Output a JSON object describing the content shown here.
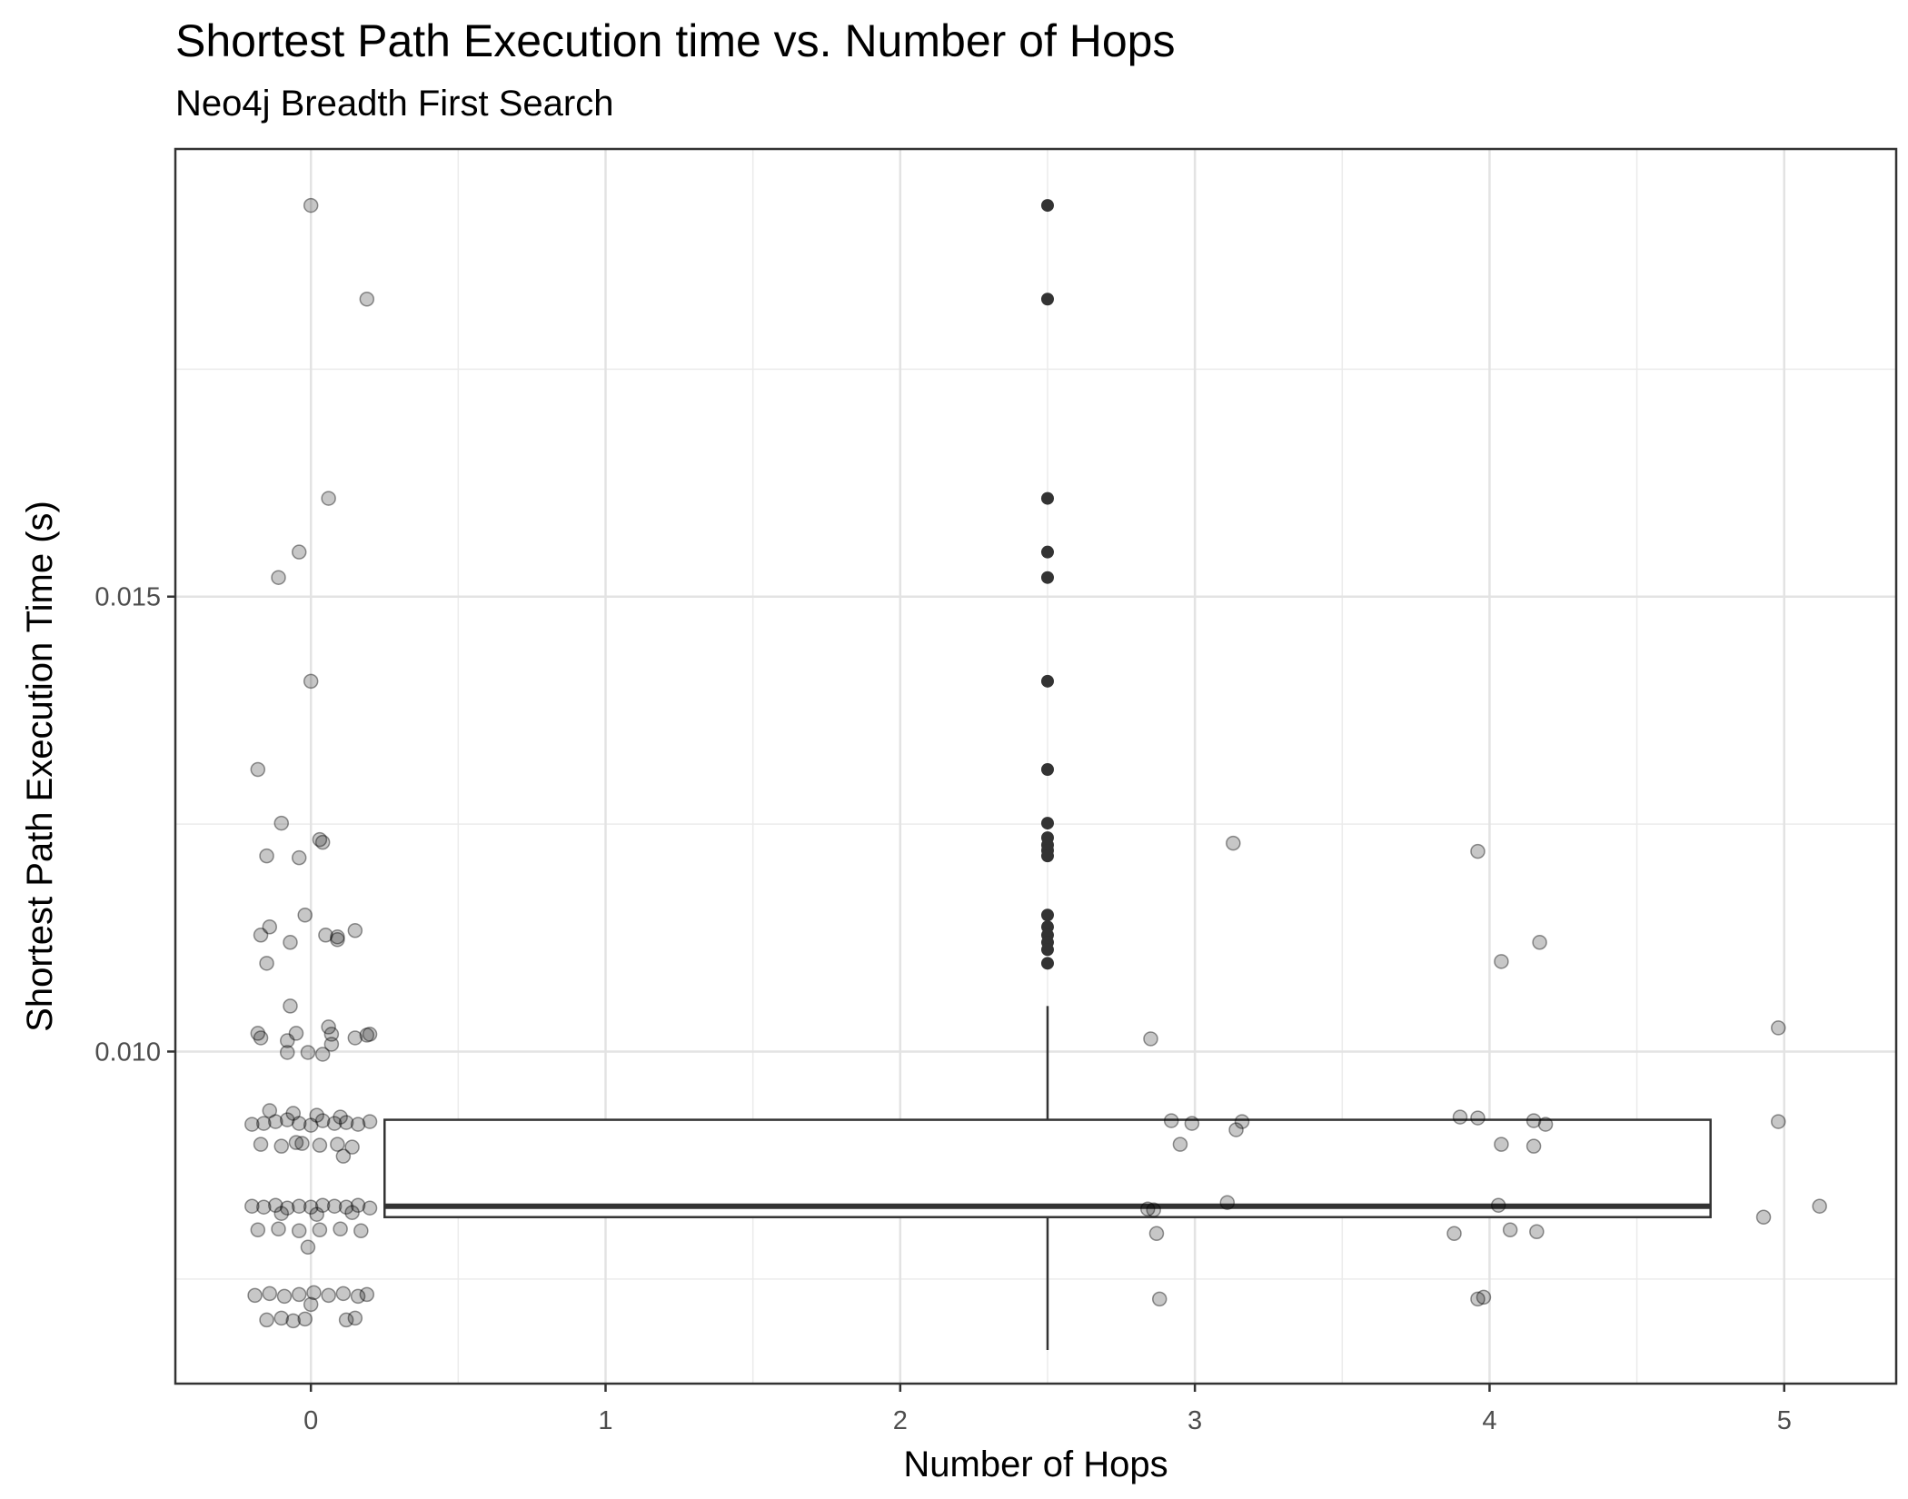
{
  "chart_data": {
    "type": "boxplot-with-jitter",
    "title": "Shortest Path Execution time vs. Number of Hops",
    "subtitle": "Neo4j Breadth First Search",
    "xlabel": "Number of Hops",
    "ylabel": "Shortest Path Execution Time (s)",
    "xlim": [
      -0.46,
      5.38
    ],
    "ylim": [
      0.00635,
      0.01992
    ],
    "x_ticks": [
      0,
      1,
      2,
      3,
      4,
      5
    ],
    "x_tick_labels": [
      "0",
      "1",
      "2",
      "3",
      "4",
      "5"
    ],
    "y_ticks": [
      0.01,
      0.015
    ],
    "y_tick_labels": [
      "0.010",
      "0.015"
    ],
    "grid": true,
    "box": {
      "x_center": 2.5,
      "x_range": [
        0.25,
        4.75
      ],
      "q1": 0.00818,
      "median": 0.0083,
      "q3": 0.00925,
      "whisker_low": 0.00672,
      "whisker_high": 0.0105
    },
    "outliers": [
      0.0193,
      0.01827,
      0.01608,
      0.01549,
      0.01521,
      0.01407,
      0.0131,
      0.01251,
      0.01235,
      0.01227,
      0.01221,
      0.01215,
      0.0115,
      0.01137,
      0.01128,
      0.0112,
      0.01112,
      0.01097
    ],
    "points": [
      {
        "x": 0.0,
        "y": 0.0193
      },
      {
        "x": 0.19,
        "y": 0.01827
      },
      {
        "x": 0.06,
        "y": 0.01608
      },
      {
        "x": -0.04,
        "y": 0.01549
      },
      {
        "x": -0.11,
        "y": 0.01521
      },
      {
        "x": 0.0,
        "y": 0.01407
      },
      {
        "x": -0.18,
        "y": 0.0131
      },
      {
        "x": -0.1,
        "y": 0.01251
      },
      {
        "x": -0.15,
        "y": 0.01215
      },
      {
        "x": -0.04,
        "y": 0.01213
      },
      {
        "x": 0.03,
        "y": 0.01233
      },
      {
        "x": 0.04,
        "y": 0.0123
      },
      {
        "x": -0.02,
        "y": 0.0115
      },
      {
        "x": -0.14,
        "y": 0.01137
      },
      {
        "x": -0.17,
        "y": 0.01128
      },
      {
        "x": -0.07,
        "y": 0.0112
      },
      {
        "x": 0.05,
        "y": 0.01128
      },
      {
        "x": 0.09,
        "y": 0.01126
      },
      {
        "x": 0.15,
        "y": 0.01133
      },
      {
        "x": 0.09,
        "y": 0.01123
      },
      {
        "x": -0.15,
        "y": 0.01097
      },
      {
        "x": -0.07,
        "y": 0.0105
      },
      {
        "x": -0.18,
        "y": 0.0102
      },
      {
        "x": -0.17,
        "y": 0.01015
      },
      {
        "x": -0.05,
        "y": 0.0102
      },
      {
        "x": -0.08,
        "y": 0.01012
      },
      {
        "x": 0.06,
        "y": 0.01027
      },
      {
        "x": 0.07,
        "y": 0.01019
      },
      {
        "x": 0.07,
        "y": 0.01008
      },
      {
        "x": 0.15,
        "y": 0.01015
      },
      {
        "x": 0.19,
        "y": 0.01018
      },
      {
        "x": 0.2,
        "y": 0.01019
      },
      {
        "x": -0.08,
        "y": 0.00999
      },
      {
        "x": -0.01,
        "y": 0.00999
      },
      {
        "x": 0.04,
        "y": 0.00997
      },
      {
        "x": -0.2,
        "y": 0.0092
      },
      {
        "x": -0.16,
        "y": 0.00921
      },
      {
        "x": -0.12,
        "y": 0.00923
      },
      {
        "x": -0.08,
        "y": 0.00925
      },
      {
        "x": -0.04,
        "y": 0.00921
      },
      {
        "x": 0.0,
        "y": 0.00919
      },
      {
        "x": 0.04,
        "y": 0.00924
      },
      {
        "x": 0.08,
        "y": 0.00921
      },
      {
        "x": 0.12,
        "y": 0.00922
      },
      {
        "x": 0.16,
        "y": 0.0092
      },
      {
        "x": 0.2,
        "y": 0.00923
      },
      {
        "x": -0.14,
        "y": 0.00935
      },
      {
        "x": -0.06,
        "y": 0.00932
      },
      {
        "x": 0.02,
        "y": 0.0093
      },
      {
        "x": 0.1,
        "y": 0.00928
      },
      {
        "x": -0.17,
        "y": 0.00898
      },
      {
        "x": -0.1,
        "y": 0.00896
      },
      {
        "x": -0.03,
        "y": 0.00899
      },
      {
        "x": 0.03,
        "y": 0.00897
      },
      {
        "x": 0.09,
        "y": 0.00898
      },
      {
        "x": 0.14,
        "y": 0.00895
      },
      {
        "x": -0.05,
        "y": 0.009
      },
      {
        "x": 0.11,
        "y": 0.00885
      },
      {
        "x": -0.2,
        "y": 0.0083
      },
      {
        "x": -0.16,
        "y": 0.00829
      },
      {
        "x": -0.12,
        "y": 0.00831
      },
      {
        "x": -0.08,
        "y": 0.00828
      },
      {
        "x": -0.04,
        "y": 0.0083
      },
      {
        "x": 0.0,
        "y": 0.00829
      },
      {
        "x": 0.04,
        "y": 0.00831
      },
      {
        "x": 0.08,
        "y": 0.0083
      },
      {
        "x": 0.12,
        "y": 0.00829
      },
      {
        "x": 0.16,
        "y": 0.00831
      },
      {
        "x": 0.2,
        "y": 0.00828
      },
      {
        "x": -0.1,
        "y": 0.00822
      },
      {
        "x": 0.02,
        "y": 0.00821
      },
      {
        "x": 0.14,
        "y": 0.00823
      },
      {
        "x": -0.18,
        "y": 0.00804
      },
      {
        "x": -0.11,
        "y": 0.00805
      },
      {
        "x": -0.04,
        "y": 0.00803
      },
      {
        "x": 0.03,
        "y": 0.00804
      },
      {
        "x": 0.1,
        "y": 0.00805
      },
      {
        "x": 0.17,
        "y": 0.00803
      },
      {
        "x": -0.01,
        "y": 0.00785
      },
      {
        "x": -0.19,
        "y": 0.00732
      },
      {
        "x": -0.14,
        "y": 0.00734
      },
      {
        "x": -0.09,
        "y": 0.00731
      },
      {
        "x": -0.04,
        "y": 0.00733
      },
      {
        "x": 0.01,
        "y": 0.00735
      },
      {
        "x": 0.06,
        "y": 0.00732
      },
      {
        "x": 0.11,
        "y": 0.00734
      },
      {
        "x": 0.16,
        "y": 0.00731
      },
      {
        "x": 0.19,
        "y": 0.00733
      },
      {
        "x": 0.0,
        "y": 0.00722
      },
      {
        "x": -0.15,
        "y": 0.00705
      },
      {
        "x": -0.1,
        "y": 0.00707
      },
      {
        "x": -0.06,
        "y": 0.00704
      },
      {
        "x": -0.02,
        "y": 0.00706
      },
      {
        "x": 0.12,
        "y": 0.00705
      },
      {
        "x": 0.15,
        "y": 0.00707
      },
      {
        "x": 3.13,
        "y": 0.01229
      },
      {
        "x": 2.85,
        "y": 0.01014
      },
      {
        "x": 2.92,
        "y": 0.00924
      },
      {
        "x": 2.99,
        "y": 0.00921
      },
      {
        "x": 3.16,
        "y": 0.00923
      },
      {
        "x": 3.14,
        "y": 0.00914
      },
      {
        "x": 2.95,
        "y": 0.00898
      },
      {
        "x": 3.11,
        "y": 0.00834
      },
      {
        "x": 2.84,
        "y": 0.00827
      },
      {
        "x": 2.86,
        "y": 0.00826
      },
      {
        "x": 2.87,
        "y": 0.008
      },
      {
        "x": 2.88,
        "y": 0.00728
      },
      {
        "x": 3.96,
        "y": 0.0122
      },
      {
        "x": 4.17,
        "y": 0.0112
      },
      {
        "x": 4.04,
        "y": 0.01099
      },
      {
        "x": 3.9,
        "y": 0.00928
      },
      {
        "x": 3.96,
        "y": 0.00927
      },
      {
        "x": 4.15,
        "y": 0.00924
      },
      {
        "x": 4.19,
        "y": 0.0092
      },
      {
        "x": 4.04,
        "y": 0.00898
      },
      {
        "x": 4.15,
        "y": 0.00896
      },
      {
        "x": 4.03,
        "y": 0.00831
      },
      {
        "x": 4.07,
        "y": 0.00804
      },
      {
        "x": 4.16,
        "y": 0.00802
      },
      {
        "x": 3.88,
        "y": 0.008
      },
      {
        "x": 3.98,
        "y": 0.0073
      },
      {
        "x": 3.96,
        "y": 0.00728
      },
      {
        "x": 4.98,
        "y": 0.01026
      },
      {
        "x": 4.98,
        "y": 0.00923
      },
      {
        "x": 5.12,
        "y": 0.0083
      },
      {
        "x": 4.93,
        "y": 0.00818
      }
    ]
  }
}
